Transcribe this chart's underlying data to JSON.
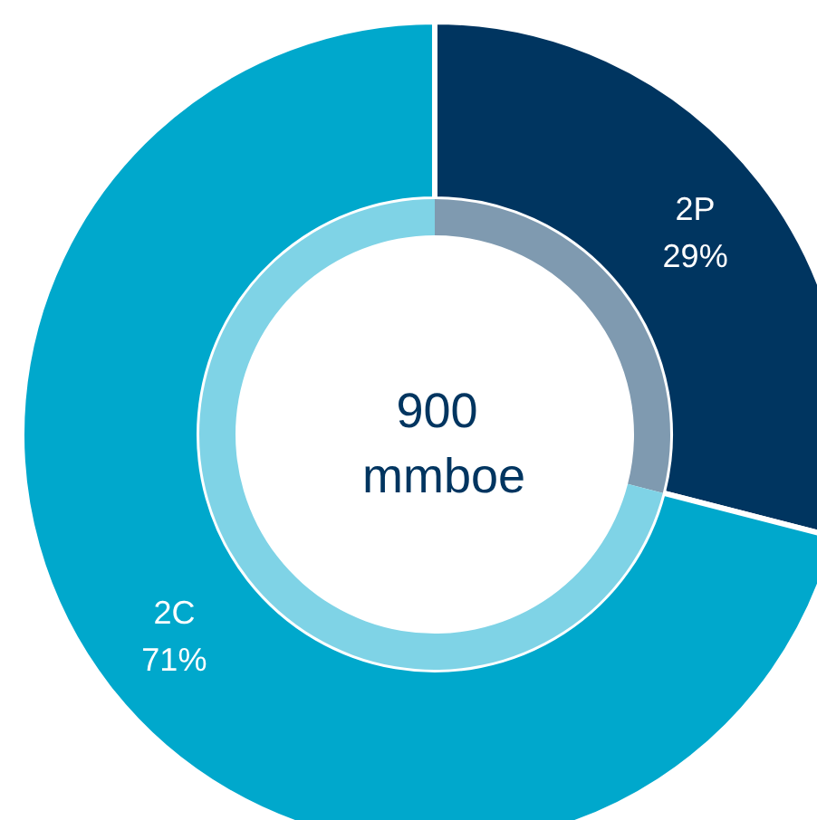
{
  "chart_data": {
    "type": "donut",
    "title": "900 mmboe",
    "categories": [
      "2P",
      "2C"
    ],
    "series": [
      {
        "values": [
          29,
          71
        ],
        "colors": [
          "#003560",
          "#00a8cc"
        ],
        "value_labels": [
          "29%",
          "71%"
        ]
      },
      {
        "values": [
          29,
          71
        ],
        "colors": [
          "#7f9ab0",
          "#7fd3e6"
        ]
      }
    ],
    "legend": false
  }
}
